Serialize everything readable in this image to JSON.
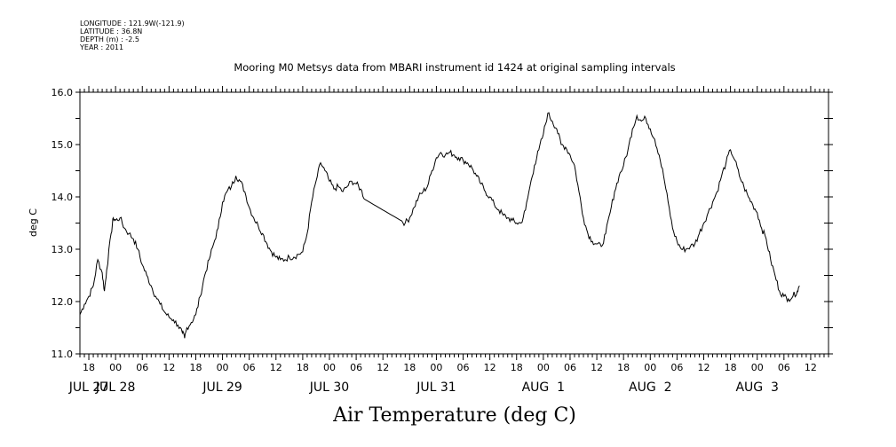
{
  "header": {
    "longitude": "LONGITUDE : 121.9W(-121.9)",
    "latitude": "LATITUDE : 36.8N",
    "depth": "DEPTH (m) : -2.5",
    "year": "YEAR : 2011"
  },
  "chart_data": {
    "type": "line",
    "title": "Mooring M0 Metsys data from MBARI instrument id 1424 at original sampling intervals",
    "xlabel": "Air Temperature (deg C)",
    "ylabel": "deg C",
    "ylim": [
      11.0,
      16.0
    ],
    "yticks": [
      "11.0",
      "12.0",
      "13.0",
      "14.0",
      "15.0",
      "16.0"
    ],
    "x_units": "hours since 2011-07-27 16:00",
    "xlim": [
      0,
      168
    ],
    "hour_ticks": [
      "18",
      "00",
      "06",
      "12",
      "18",
      "00",
      "06",
      "12",
      "18",
      "00",
      "06",
      "12",
      "18",
      "00",
      "06",
      "12",
      "18",
      "00",
      "06",
      "12",
      "18",
      "00",
      "06",
      "12",
      "18",
      "00",
      "06",
      "12",
      "18",
      "00",
      "06",
      "12"
    ],
    "date_labels": [
      "JUL 27",
      "JUL 28",
      "JUL 29",
      "JUL 30",
      "JUL 31",
      "AUG  1",
      "AUG  2",
      "AUG  3"
    ],
    "grid": false,
    "series": [
      {
        "color": "#000000",
        "points": [
          [
            0.0,
            11.75
          ],
          [
            1.0,
            11.95
          ],
          [
            2.0,
            12.1
          ],
          [
            3.0,
            12.3
          ],
          [
            4.0,
            12.8
          ],
          [
            5.0,
            12.55
          ],
          [
            5.5,
            12.2
          ],
          [
            6.0,
            12.6
          ],
          [
            7.0,
            13.3
          ],
          [
            7.5,
            13.6
          ],
          [
            8.0,
            13.55
          ],
          [
            9.0,
            13.6
          ],
          [
            10.0,
            13.4
          ],
          [
            11.0,
            13.3
          ],
          [
            12.0,
            13.2
          ],
          [
            13.0,
            13.0
          ],
          [
            14.0,
            12.7
          ],
          [
            15.0,
            12.5
          ],
          [
            16.0,
            12.3
          ],
          [
            17.0,
            12.1
          ],
          [
            18.0,
            11.95
          ],
          [
            19.0,
            11.8
          ],
          [
            20.0,
            11.7
          ],
          [
            21.0,
            11.65
          ],
          [
            22.0,
            11.55
          ],
          [
            23.0,
            11.4
          ],
          [
            23.5,
            11.3
          ],
          [
            24.0,
            11.5
          ],
          [
            25.0,
            11.6
          ],
          [
            26.0,
            11.75
          ],
          [
            27.0,
            12.1
          ],
          [
            28.0,
            12.5
          ],
          [
            29.0,
            12.8
          ],
          [
            30.0,
            13.1
          ],
          [
            31.0,
            13.4
          ],
          [
            32.0,
            13.9
          ],
          [
            33.0,
            14.1
          ],
          [
            34.0,
            14.2
          ],
          [
            35.0,
            14.4
          ],
          [
            36.0,
            14.3
          ],
          [
            37.0,
            14.1
          ],
          [
            38.0,
            13.8
          ],
          [
            39.0,
            13.6
          ],
          [
            40.0,
            13.45
          ],
          [
            41.0,
            13.3
          ],
          [
            42.0,
            13.1
          ],
          [
            43.0,
            12.95
          ],
          [
            44.0,
            12.85
          ],
          [
            45.0,
            12.8
          ],
          [
            46.0,
            12.8
          ],
          [
            47.0,
            12.85
          ],
          [
            48.0,
            12.85
          ],
          [
            49.0,
            12.9
          ],
          [
            50.0,
            12.95
          ],
          [
            51.0,
            13.3
          ],
          [
            52.0,
            13.9
          ],
          [
            53.0,
            14.3
          ],
          [
            54.0,
            14.65
          ],
          [
            55.0,
            14.5
          ],
          [
            56.0,
            14.3
          ],
          [
            57.0,
            14.15
          ],
          [
            58.0,
            14.2
          ],
          [
            59.0,
            14.1
          ],
          [
            60.0,
            14.2
          ],
          [
            61.0,
            14.3
          ],
          [
            62.0,
            14.25
          ],
          [
            63.0,
            14.15
          ],
          [
            64.0,
            13.95
          ],
          [
            66.0,
            13.85
          ],
          [
            68.0,
            13.75
          ],
          [
            70.0,
            13.65
          ],
          [
            72.0,
            13.55
          ],
          [
            73.0,
            13.5
          ],
          [
            74.0,
            13.6
          ],
          [
            75.0,
            13.8
          ],
          [
            76.0,
            14.0
          ],
          [
            77.0,
            14.1
          ],
          [
            78.0,
            14.2
          ],
          [
            79.0,
            14.5
          ],
          [
            80.0,
            14.75
          ],
          [
            81.0,
            14.85
          ],
          [
            82.0,
            14.8
          ],
          [
            83.0,
            14.85
          ],
          [
            84.0,
            14.8
          ],
          [
            85.0,
            14.75
          ],
          [
            86.0,
            14.7
          ],
          [
            87.0,
            14.65
          ],
          [
            88.0,
            14.55
          ],
          [
            89.0,
            14.4
          ],
          [
            90.0,
            14.25
          ],
          [
            91.0,
            14.1
          ],
          [
            92.0,
            14.0
          ],
          [
            93.0,
            13.85
          ],
          [
            94.0,
            13.75
          ],
          [
            95.0,
            13.65
          ],
          [
            96.0,
            13.6
          ],
          [
            97.0,
            13.55
          ],
          [
            98.0,
            13.5
          ],
          [
            99.0,
            13.5
          ],
          [
            100.0,
            13.75
          ],
          [
            101.0,
            14.2
          ],
          [
            102.0,
            14.6
          ],
          [
            103.0,
            14.9
          ],
          [
            104.0,
            15.2
          ],
          [
            105.0,
            15.6
          ],
          [
            106.0,
            15.45
          ],
          [
            107.0,
            15.3
          ],
          [
            108.0,
            15.0
          ],
          [
            109.0,
            14.95
          ],
          [
            110.0,
            14.8
          ],
          [
            111.0,
            14.6
          ],
          [
            112.0,
            14.1
          ],
          [
            113.0,
            13.6
          ],
          [
            114.0,
            13.3
          ],
          [
            115.0,
            13.15
          ],
          [
            116.0,
            13.1
          ],
          [
            117.0,
            13.05
          ],
          [
            118.0,
            13.3
          ],
          [
            119.0,
            13.7
          ],
          [
            120.0,
            14.1
          ],
          [
            121.0,
            14.4
          ],
          [
            122.0,
            14.6
          ],
          [
            123.0,
            14.9
          ],
          [
            124.0,
            15.3
          ],
          [
            125.0,
            15.55
          ],
          [
            126.0,
            15.45
          ],
          [
            127.0,
            15.5
          ],
          [
            128.0,
            15.3
          ],
          [
            129.0,
            15.1
          ],
          [
            130.0,
            14.8
          ],
          [
            131.0,
            14.4
          ],
          [
            132.0,
            13.9
          ],
          [
            133.0,
            13.4
          ],
          [
            134.0,
            13.15
          ],
          [
            135.0,
            13.0
          ],
          [
            136.0,
            13.0
          ],
          [
            137.0,
            13.05
          ],
          [
            138.0,
            13.1
          ],
          [
            139.0,
            13.3
          ],
          [
            140.0,
            13.5
          ],
          [
            141.0,
            13.7
          ],
          [
            142.0,
            13.9
          ],
          [
            143.0,
            14.1
          ],
          [
            144.0,
            14.4
          ],
          [
            145.0,
            14.65
          ],
          [
            146.0,
            14.9
          ],
          [
            147.0,
            14.7
          ],
          [
            148.0,
            14.4
          ],
          [
            149.0,
            14.2
          ],
          [
            150.0,
            14.0
          ],
          [
            151.0,
            13.85
          ],
          [
            152.0,
            13.7
          ],
          [
            153.0,
            13.4
          ],
          [
            154.0,
            13.2
          ],
          [
            155.0,
            12.8
          ],
          [
            156.0,
            12.5
          ],
          [
            157.0,
            12.2
          ],
          [
            158.0,
            12.1
          ],
          [
            159.0,
            12.05
          ],
          [
            160.0,
            12.1
          ],
          [
            161.0,
            12.2
          ],
          [
            161.5,
            12.3
          ]
        ]
      }
    ]
  }
}
